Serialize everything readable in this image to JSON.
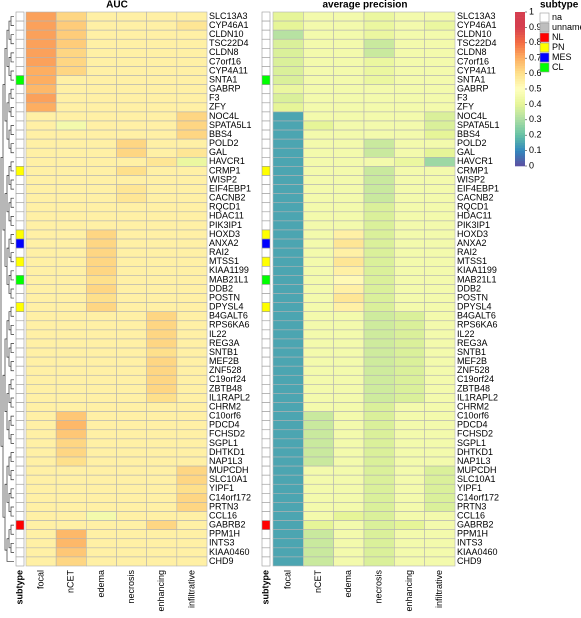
{
  "chart_data": [
    {
      "type": "heatmap",
      "title": "AUC",
      "columns": [
        "focal",
        "nCET",
        "edema",
        "necrosis",
        "enhancing",
        "infiltrative"
      ],
      "rows": [
        "SLC13A3",
        "CYP46A1",
        "CLDN10",
        "TSC22D4",
        "CLDN8",
        "C7orf16",
        "CYP4A11",
        "SNTA1",
        "GABRP",
        "F3",
        "ZFY",
        "NOC4L",
        "SPATA5L1",
        "BBS4",
        "POLD2",
        "GAL",
        "HAVCR1",
        "CRMP1",
        "WISP2",
        "EIF4EBP1",
        "CACNB2",
        "RQCD1",
        "HDAC11",
        "PIK3IP1",
        "HOXD3",
        "ANXA2",
        "RAI2",
        "MTSS1",
        "KIAA1199",
        "MAB21L1",
        "DDB2",
        "POSTN",
        "DPYSL4",
        "B4GALT6",
        "RPS6KA6",
        "IL22",
        "REG3A",
        "SNTB1",
        "MEF2B",
        "ZNF528",
        "C19orf24",
        "ZBTB48",
        "IL1RAPL2",
        "CHRM2",
        "C10orf6",
        "PDCD4",
        "FCHSD2",
        "SGPL1",
        "DHTKD1",
        "NAP1L3",
        "MUPCDH",
        "SLC10A1",
        "YIPF1",
        "C14orf172",
        "PRTN3",
        "CCL16",
        "GABRB2",
        "PPM1H",
        "INTS3",
        "KIAA0460",
        "CHD9"
      ],
      "row_annotation": {
        "name": "subtype",
        "values": [
          "na",
          "na",
          "na",
          "na",
          "na",
          "na",
          "na",
          "CL",
          "na",
          "na",
          "na",
          "na",
          "na",
          "na",
          "na",
          "na",
          "na",
          "PN",
          "na",
          "na",
          "na",
          "na",
          "na",
          "na",
          "PN",
          "MES",
          "na",
          "PN",
          "na",
          "CL",
          "na",
          "na",
          "PN",
          "na",
          "na",
          "na",
          "na",
          "na",
          "na",
          "na",
          "na",
          "na",
          "na",
          "na",
          "na",
          "na",
          "na",
          "na",
          "na",
          "na",
          "na",
          "na",
          "na",
          "na",
          "na",
          "na",
          "NL",
          "na",
          "na",
          "na",
          "na"
        ]
      },
      "values": [
        [
          0.72,
          0.62,
          0.55,
          0.55,
          0.55,
          0.55
        ],
        [
          0.72,
          0.64,
          0.55,
          0.55,
          0.55,
          0.58
        ],
        [
          0.72,
          0.64,
          0.55,
          0.55,
          0.55,
          0.55
        ],
        [
          0.72,
          0.64,
          0.55,
          0.55,
          0.55,
          0.55
        ],
        [
          0.72,
          0.62,
          0.55,
          0.55,
          0.55,
          0.55
        ],
        [
          0.72,
          0.62,
          0.55,
          0.55,
          0.55,
          0.55
        ],
        [
          0.7,
          0.62,
          0.55,
          0.55,
          0.55,
          0.55
        ],
        [
          0.7,
          0.55,
          0.55,
          0.55,
          0.55,
          0.55
        ],
        [
          0.68,
          0.55,
          0.55,
          0.55,
          0.55,
          0.55
        ],
        [
          0.72,
          0.55,
          0.55,
          0.55,
          0.55,
          0.55
        ],
        [
          0.7,
          0.55,
          0.55,
          0.55,
          0.55,
          0.55
        ],
        [
          0.55,
          0.55,
          0.55,
          0.55,
          0.55,
          0.62
        ],
        [
          0.55,
          0.45,
          0.55,
          0.55,
          0.55,
          0.62
        ],
        [
          0.55,
          0.55,
          0.55,
          0.55,
          0.55,
          0.62
        ],
        [
          0.55,
          0.55,
          0.55,
          0.62,
          0.55,
          0.55
        ],
        [
          0.55,
          0.55,
          0.55,
          0.62,
          0.55,
          0.58
        ],
        [
          0.55,
          0.55,
          0.55,
          0.55,
          0.58,
          0.42
        ],
        [
          0.55,
          0.55,
          0.55,
          0.6,
          0.55,
          0.55
        ],
        [
          0.55,
          0.55,
          0.55,
          0.55,
          0.55,
          0.55
        ],
        [
          0.55,
          0.55,
          0.55,
          0.58,
          0.55,
          0.55
        ],
        [
          0.55,
          0.55,
          0.55,
          0.58,
          0.55,
          0.55
        ],
        [
          0.55,
          0.55,
          0.55,
          0.55,
          0.55,
          0.55
        ],
        [
          0.55,
          0.55,
          0.55,
          0.55,
          0.55,
          0.55
        ],
        [
          0.55,
          0.55,
          0.55,
          0.55,
          0.55,
          0.55
        ],
        [
          0.55,
          0.55,
          0.62,
          0.55,
          0.55,
          0.55
        ],
        [
          0.55,
          0.55,
          0.62,
          0.55,
          0.55,
          0.55
        ],
        [
          0.55,
          0.55,
          0.62,
          0.55,
          0.55,
          0.55
        ],
        [
          0.55,
          0.55,
          0.62,
          0.55,
          0.55,
          0.55
        ],
        [
          0.55,
          0.55,
          0.62,
          0.55,
          0.55,
          0.55
        ],
        [
          0.55,
          0.55,
          0.6,
          0.55,
          0.55,
          0.55
        ],
        [
          0.55,
          0.55,
          0.62,
          0.55,
          0.55,
          0.55
        ],
        [
          0.55,
          0.55,
          0.6,
          0.55,
          0.55,
          0.55
        ],
        [
          0.55,
          0.55,
          0.62,
          0.55,
          0.55,
          0.55
        ],
        [
          0.55,
          0.55,
          0.55,
          0.55,
          0.62,
          0.55
        ],
        [
          0.55,
          0.55,
          0.55,
          0.55,
          0.62,
          0.55
        ],
        [
          0.55,
          0.55,
          0.55,
          0.55,
          0.62,
          0.55
        ],
        [
          0.55,
          0.55,
          0.55,
          0.55,
          0.62,
          0.55
        ],
        [
          0.55,
          0.55,
          0.55,
          0.55,
          0.6,
          0.55
        ],
        [
          0.55,
          0.55,
          0.55,
          0.55,
          0.62,
          0.55
        ],
        [
          0.55,
          0.55,
          0.55,
          0.55,
          0.62,
          0.55
        ],
        [
          0.55,
          0.55,
          0.55,
          0.55,
          0.62,
          0.55
        ],
        [
          0.55,
          0.55,
          0.55,
          0.55,
          0.62,
          0.55
        ],
        [
          0.55,
          0.55,
          0.55,
          0.55,
          0.6,
          0.55
        ],
        [
          0.55,
          0.55,
          0.55,
          0.55,
          0.55,
          0.55
        ],
        [
          0.55,
          0.65,
          0.55,
          0.55,
          0.55,
          0.55
        ],
        [
          0.55,
          0.68,
          0.55,
          0.55,
          0.55,
          0.55
        ],
        [
          0.55,
          0.65,
          0.55,
          0.55,
          0.55,
          0.55
        ],
        [
          0.55,
          0.62,
          0.55,
          0.55,
          0.55,
          0.55
        ],
        [
          0.55,
          0.62,
          0.55,
          0.55,
          0.55,
          0.55
        ],
        [
          0.55,
          0.6,
          0.55,
          0.55,
          0.55,
          0.55
        ],
        [
          0.55,
          0.55,
          0.55,
          0.55,
          0.55,
          0.62
        ],
        [
          0.55,
          0.55,
          0.55,
          0.55,
          0.55,
          0.62
        ],
        [
          0.55,
          0.55,
          0.55,
          0.55,
          0.55,
          0.6
        ],
        [
          0.55,
          0.55,
          0.55,
          0.55,
          0.55,
          0.62
        ],
        [
          0.55,
          0.55,
          0.55,
          0.55,
          0.55,
          0.62
        ],
        [
          0.55,
          0.55,
          0.45,
          0.55,
          0.55,
          0.55
        ],
        [
          0.55,
          0.55,
          0.55,
          0.55,
          0.62,
          0.55
        ],
        [
          0.55,
          0.68,
          0.55,
          0.55,
          0.55,
          0.55
        ],
        [
          0.55,
          0.68,
          0.55,
          0.55,
          0.55,
          0.55
        ],
        [
          0.55,
          0.65,
          0.55,
          0.55,
          0.55,
          0.55
        ],
        [
          0.55,
          0.62,
          0.55,
          0.55,
          0.55,
          0.55
        ]
      ]
    },
    {
      "type": "heatmap",
      "title": "average precision",
      "columns": [
        "focal",
        "nCET",
        "edema",
        "necrosis",
        "enhancing",
        "infiltrative"
      ],
      "rows": [
        "SLC13A3",
        "CYP46A1",
        "CLDN10",
        "TSC22D4",
        "CLDN8",
        "C7orf16",
        "CYP4A11",
        "SNTA1",
        "GABRP",
        "F3",
        "ZFY",
        "NOC4L",
        "SPATA5L1",
        "BBS4",
        "POLD2",
        "GAL",
        "HAVCR1",
        "CRMP1",
        "WISP2",
        "EIF4EBP1",
        "CACNB2",
        "RQCD1",
        "HDAC11",
        "PIK3IP1",
        "HOXD3",
        "ANXA2",
        "RAI2",
        "MTSS1",
        "KIAA1199",
        "MAB21L1",
        "DDB2",
        "POSTN",
        "DPYSL4",
        "B4GALT6",
        "RPS6KA6",
        "IL22",
        "REG3A",
        "SNTB1",
        "MEF2B",
        "ZNF528",
        "C19orf24",
        "ZBTB48",
        "IL1RAPL2",
        "CHRM2",
        "C10orf6",
        "PDCD4",
        "FCHSD2",
        "SGPL1",
        "DHTKD1",
        "NAP1L3",
        "MUPCDH",
        "SLC10A1",
        "YIPF1",
        "C14orf172",
        "PRTN3",
        "CCL16",
        "GABRB2",
        "PPM1H",
        "INTS3",
        "KIAA0460",
        "CHD9"
      ],
      "row_annotation": {
        "name": "subtype",
        "values": [
          "na",
          "na",
          "na",
          "na",
          "na",
          "na",
          "na",
          "CL",
          "na",
          "na",
          "na",
          "na",
          "na",
          "na",
          "na",
          "na",
          "na",
          "PN",
          "na",
          "na",
          "na",
          "na",
          "na",
          "na",
          "PN",
          "MES",
          "na",
          "PN",
          "na",
          "CL",
          "na",
          "na",
          "PN",
          "na",
          "na",
          "na",
          "na",
          "na",
          "na",
          "na",
          "na",
          "na",
          "na",
          "na",
          "na",
          "na",
          "na",
          "na",
          "na",
          "na",
          "na",
          "na",
          "na",
          "na",
          "na",
          "na",
          "NL",
          "na",
          "na",
          "na",
          "na"
        ]
      },
      "values": [
        [
          0.4,
          0.45,
          0.45,
          0.42,
          0.45,
          0.45
        ],
        [
          0.4,
          0.45,
          0.45,
          0.42,
          0.45,
          0.42
        ],
        [
          0.32,
          0.45,
          0.45,
          0.42,
          0.45,
          0.45
        ],
        [
          0.38,
          0.45,
          0.45,
          0.35,
          0.45,
          0.45
        ],
        [
          0.38,
          0.45,
          0.45,
          0.35,
          0.45,
          0.45
        ],
        [
          0.38,
          0.45,
          0.45,
          0.42,
          0.45,
          0.45
        ],
        [
          0.38,
          0.45,
          0.45,
          0.42,
          0.45,
          0.45
        ],
        [
          0.38,
          0.45,
          0.45,
          0.42,
          0.45,
          0.45
        ],
        [
          0.42,
          0.45,
          0.45,
          0.45,
          0.45,
          0.45
        ],
        [
          0.38,
          0.45,
          0.45,
          0.45,
          0.45,
          0.45
        ],
        [
          0.4,
          0.45,
          0.45,
          0.45,
          0.45,
          0.45
        ],
        [
          0.15,
          0.45,
          0.45,
          0.45,
          0.45,
          0.38
        ],
        [
          0.15,
          0.4,
          0.45,
          0.45,
          0.45,
          0.38
        ],
        [
          0.15,
          0.45,
          0.45,
          0.45,
          0.45,
          0.4
        ],
        [
          0.15,
          0.45,
          0.45,
          0.35,
          0.45,
          0.45
        ],
        [
          0.15,
          0.45,
          0.45,
          0.35,
          0.45,
          0.4
        ],
        [
          0.15,
          0.45,
          0.45,
          0.45,
          0.42,
          0.28
        ],
        [
          0.15,
          0.45,
          0.45,
          0.35,
          0.45,
          0.45
        ],
        [
          0.15,
          0.45,
          0.45,
          0.35,
          0.45,
          0.45
        ],
        [
          0.15,
          0.45,
          0.45,
          0.35,
          0.45,
          0.45
        ],
        [
          0.15,
          0.45,
          0.45,
          0.35,
          0.45,
          0.45
        ],
        [
          0.15,
          0.45,
          0.45,
          0.38,
          0.45,
          0.45
        ],
        [
          0.15,
          0.45,
          0.45,
          0.38,
          0.45,
          0.45
        ],
        [
          0.15,
          0.45,
          0.45,
          0.38,
          0.45,
          0.45
        ],
        [
          0.15,
          0.45,
          0.55,
          0.38,
          0.45,
          0.45
        ],
        [
          0.15,
          0.45,
          0.58,
          0.38,
          0.45,
          0.45
        ],
        [
          0.15,
          0.45,
          0.55,
          0.38,
          0.45,
          0.45
        ],
        [
          0.15,
          0.45,
          0.58,
          0.38,
          0.45,
          0.45
        ],
        [
          0.15,
          0.45,
          0.55,
          0.38,
          0.45,
          0.45
        ],
        [
          0.15,
          0.45,
          0.52,
          0.38,
          0.45,
          0.45
        ],
        [
          0.15,
          0.45,
          0.55,
          0.38,
          0.45,
          0.45
        ],
        [
          0.15,
          0.45,
          0.58,
          0.38,
          0.45,
          0.45
        ],
        [
          0.15,
          0.45,
          0.55,
          0.38,
          0.45,
          0.45
        ],
        [
          0.15,
          0.45,
          0.45,
          0.36,
          0.38,
          0.45
        ],
        [
          0.15,
          0.45,
          0.45,
          0.36,
          0.38,
          0.45
        ],
        [
          0.15,
          0.45,
          0.45,
          0.36,
          0.38,
          0.45
        ],
        [
          0.15,
          0.45,
          0.45,
          0.36,
          0.38,
          0.45
        ],
        [
          0.15,
          0.45,
          0.45,
          0.36,
          0.38,
          0.45
        ],
        [
          0.15,
          0.45,
          0.45,
          0.36,
          0.38,
          0.45
        ],
        [
          0.15,
          0.45,
          0.45,
          0.36,
          0.38,
          0.45
        ],
        [
          0.15,
          0.45,
          0.45,
          0.36,
          0.38,
          0.45
        ],
        [
          0.15,
          0.45,
          0.45,
          0.36,
          0.38,
          0.45
        ],
        [
          0.15,
          0.45,
          0.45,
          0.36,
          0.38,
          0.45
        ],
        [
          0.15,
          0.45,
          0.45,
          0.38,
          0.45,
          0.45
        ],
        [
          0.15,
          0.35,
          0.45,
          0.38,
          0.45,
          0.45
        ],
        [
          0.15,
          0.35,
          0.45,
          0.38,
          0.45,
          0.45
        ],
        [
          0.15,
          0.35,
          0.45,
          0.38,
          0.45,
          0.45
        ],
        [
          0.15,
          0.35,
          0.45,
          0.38,
          0.45,
          0.45
        ],
        [
          0.15,
          0.35,
          0.45,
          0.38,
          0.45,
          0.45
        ],
        [
          0.15,
          0.35,
          0.45,
          0.38,
          0.45,
          0.45
        ],
        [
          0.15,
          0.45,
          0.45,
          0.38,
          0.45,
          0.38
        ],
        [
          0.15,
          0.45,
          0.45,
          0.38,
          0.45,
          0.38
        ],
        [
          0.15,
          0.45,
          0.45,
          0.38,
          0.45,
          0.38
        ],
        [
          0.15,
          0.45,
          0.45,
          0.38,
          0.45,
          0.38
        ],
        [
          0.15,
          0.45,
          0.45,
          0.38,
          0.45,
          0.38
        ],
        [
          0.15,
          0.45,
          0.4,
          0.38,
          0.45,
          0.45
        ],
        [
          0.15,
          0.4,
          0.45,
          0.38,
          0.4,
          0.45
        ],
        [
          0.15,
          0.35,
          0.45,
          0.38,
          0.45,
          0.45
        ],
        [
          0.15,
          0.35,
          0.45,
          0.38,
          0.45,
          0.45
        ],
        [
          0.15,
          0.35,
          0.45,
          0.38,
          0.45,
          0.45
        ],
        [
          0.15,
          0.35,
          0.45,
          0.38,
          0.45,
          0.45
        ]
      ]
    }
  ],
  "colorbar": {
    "lim": [
      0,
      1
    ],
    "ticks": [
      0,
      0.1,
      0.2,
      0.3,
      0.4,
      0.5,
      0.6,
      0.7,
      0.8,
      0.9,
      1
    ],
    "colors": [
      "#5e4fa2",
      "#3288bd",
      "#66c2a5",
      "#abdda4",
      "#e6f598",
      "#ffffbf",
      "#fee08b",
      "#fdae61",
      "#f46d43",
      "#d53e4f",
      "#d53e4f"
    ]
  },
  "subtype_legend": {
    "title": "subtype",
    "categories": [
      "na",
      "unnamed",
      "NL",
      "PN",
      "MES",
      "CL"
    ],
    "colors": [
      "#ffffff",
      "#bebebe",
      "#ff0000",
      "#ffff00",
      "#0000ff",
      "#00ff00"
    ]
  }
}
